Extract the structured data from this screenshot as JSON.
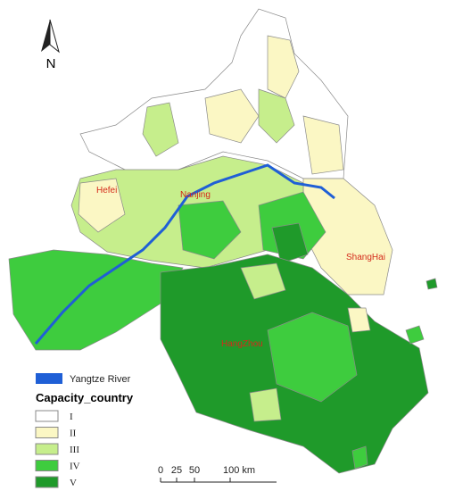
{
  "north_arrow": {
    "label": "N"
  },
  "cities": [
    "Hefei",
    "Nanjing",
    "ShangHai",
    "HangZhou"
  ],
  "legend": {
    "river": {
      "label": "Yangtze River",
      "color": "#1f5fd6"
    },
    "title": "Capacity_country",
    "classes": [
      {
        "label": "I",
        "color": "#ffffff"
      },
      {
        "label": "II",
        "color": "#fbf7c4"
      },
      {
        "label": "III",
        "color": "#c6ee8c"
      },
      {
        "label": "IV",
        "color": "#3ecc3e"
      },
      {
        "label": "V",
        "color": "#1f9a2a"
      }
    ]
  },
  "scale_bar": {
    "labels": [
      "0",
      "25",
      "50",
      "100 km"
    ]
  }
}
